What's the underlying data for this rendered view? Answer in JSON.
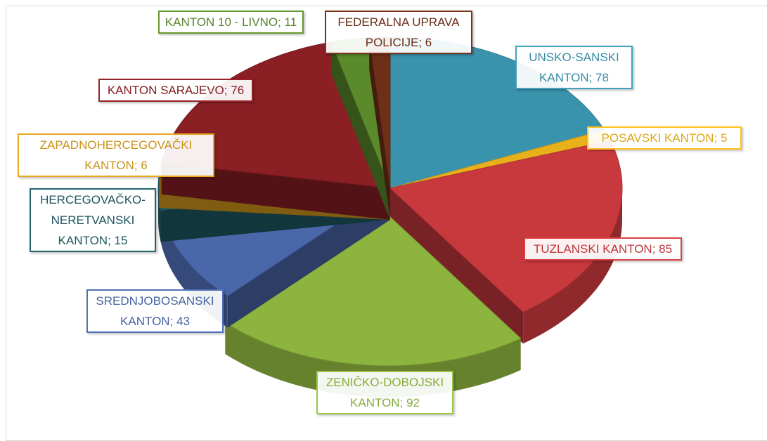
{
  "chart_data": {
    "type": "pie",
    "categories": [
      "UNSKO-SANSKI KANTON",
      "POSAVSKI KANTON",
      "TUZLANSKI KANTON",
      "ZENIČKO-DOBOJSKI KANTON",
      "SREDNJOBOSANSKI KANTON",
      "HERCEGOVAČKO-NERETVANSKI KANTON",
      "ZAPADNOHERCEGOVAČKI KANTON",
      "KANTON SARAJEVO",
      "KANTON 10 - LIVNO",
      "FEDERALNA UPRAVA POLICIJE"
    ],
    "values": [
      78,
      5,
      85,
      92,
      43,
      15,
      6,
      76,
      11,
      6
    ],
    "colors": [
      "#3a93ad",
      "#e8b01a",
      "#c8393d",
      "#8db43e",
      "#4a67a9",
      "#1f5a64",
      "#d49a1a",
      "#8a1f24",
      "#5a8a2a",
      "#6e2f18"
    ],
    "label_separator": "; "
  }
}
